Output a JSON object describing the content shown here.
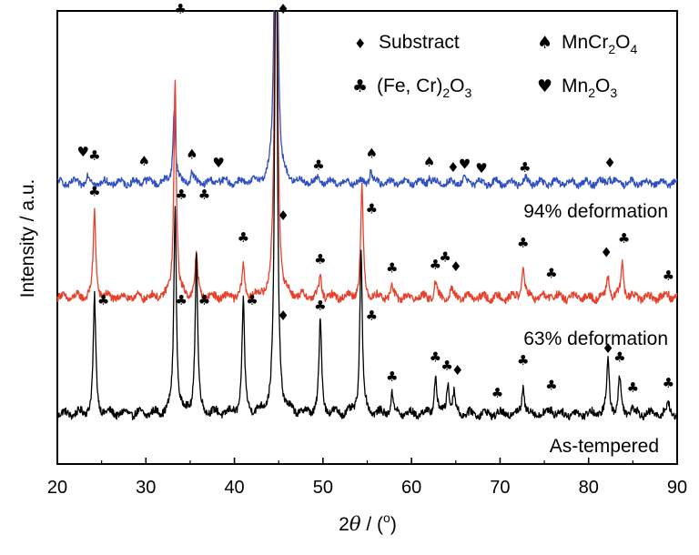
{
  "chart_data": {
    "type": "line",
    "xlabel_parts": [
      "2",
      "θ",
      " / (",
      "o",
      ")"
    ],
    "ylabel": "Intensity / a.u.",
    "xlim": [
      20,
      90
    ],
    "x_ticks": [
      20,
      30,
      40,
      50,
      60,
      70,
      80,
      90
    ],
    "y_ticks": "none (arbitrary units)",
    "grid": "off",
    "legend": {
      "placement": "top-right",
      "entries": [
        {
          "marker": "diamond",
          "symbol": "♦",
          "parts": [
            [
              "Substract",
              ""
            ]
          ]
        },
        {
          "marker": "spade",
          "symbol": "♠",
          "parts": [
            [
              "MnCr",
              ""
            ],
            [
              "2",
              "sub"
            ],
            [
              "O",
              ""
            ],
            [
              "4",
              "sub"
            ]
          ]
        },
        {
          "marker": "club",
          "symbol": "♣",
          "parts": [
            [
              "(Fe, Cr)",
              ""
            ],
            [
              "2",
              "sub"
            ],
            [
              "O",
              ""
            ],
            [
              "3",
              "sub"
            ]
          ]
        },
        {
          "marker": "heart",
          "symbol": "♥",
          "parts": [
            [
              "Mn",
              ""
            ],
            [
              "2",
              "sub"
            ],
            [
              "O",
              ""
            ],
            [
              "3",
              "sub"
            ]
          ]
        }
      ]
    },
    "series": [
      {
        "name": "As-tempered",
        "color": "#000000",
        "noise": 0.35,
        "peaks": [
          {
            "x": 24.2,
            "h": 10.6
          },
          {
            "x": 33.3,
            "h": 19.0
          },
          {
            "x": 35.7,
            "h": 14.6
          },
          {
            "x": 41.0,
            "h": 10.2
          },
          {
            "x": 44.7,
            "h": 50
          },
          {
            "x": 49.7,
            "h": 8.7
          },
          {
            "x": 54.3,
            "h": 14.8
          },
          {
            "x": 57.8,
            "h": 1.8
          },
          {
            "x": 62.7,
            "h": 3.4
          },
          {
            "x": 64.1,
            "h": 2.9
          },
          {
            "x": 64.8,
            "h": 1.8
          },
          {
            "x": 72.6,
            "h": 2.6
          },
          {
            "x": 75.8,
            "h": 0.6
          },
          {
            "x": 82.2,
            "h": 4.9
          },
          {
            "x": 83.5,
            "h": 3.3
          },
          {
            "x": 84.9,
            "h": 0.7
          },
          {
            "x": 89.0,
            "h": 1.0
          }
        ],
        "markers": [
          {
            "x": 25.2,
            "lift": 10.0,
            "symbol": "♣"
          },
          {
            "x": 34.0,
            "lift": 10.0,
            "symbol": "♣"
          },
          {
            "x": 36.6,
            "lift": 10.0,
            "symbol": "♣"
          },
          {
            "x": 42.0,
            "lift": 10.0,
            "symbol": "♣"
          },
          {
            "x": 45.5,
            "lift": 8.6,
            "symbol": "♦"
          },
          {
            "x": 49.7,
            "lift": 9.5,
            "symbol": "♣"
          },
          {
            "x": 55.5,
            "lift": 8.6,
            "symbol": "♣"
          },
          {
            "x": 57.8,
            "lift": 3.0,
            "symbol": "♣"
          },
          {
            "x": 62.7,
            "lift": 4.8,
            "symbol": "♣"
          },
          {
            "x": 64.0,
            "lift": 4.0,
            "symbol": "♣"
          },
          {
            "x": 65.2,
            "lift": 3.6,
            "symbol": "♦"
          },
          {
            "x": 69.7,
            "lift": 1.5,
            "symbol": "♣"
          },
          {
            "x": 72.6,
            "lift": 4.5,
            "symbol": "♣"
          },
          {
            "x": 75.8,
            "lift": 2.2,
            "symbol": "♣"
          },
          {
            "x": 82.2,
            "lift": 5.6,
            "symbol": "♦"
          },
          {
            "x": 83.5,
            "lift": 4.8,
            "symbol": "♣"
          },
          {
            "x": 85.0,
            "lift": 2.0,
            "symbol": "♣"
          },
          {
            "x": 89.0,
            "lift": 2.4,
            "symbol": "♣"
          }
        ]
      },
      {
        "name": "63% deformation",
        "color": "#e8402a",
        "noise": 0.35,
        "peaks": [
          {
            "x": 24.2,
            "h": 7.8
          },
          {
            "x": 33.3,
            "h": 20.0
          },
          {
            "x": 35.7,
            "h": 3.9
          },
          {
            "x": 41.0,
            "h": 2.7
          },
          {
            "x": 44.7,
            "h": 50
          },
          {
            "x": 49.7,
            "h": 1.8
          },
          {
            "x": 54.4,
            "h": 10.0
          },
          {
            "x": 57.8,
            "h": 0.9
          },
          {
            "x": 62.7,
            "h": 1.2
          },
          {
            "x": 64.5,
            "h": 0.8
          },
          {
            "x": 72.6,
            "h": 3.0
          },
          {
            "x": 75.8,
            "h": 0.4
          },
          {
            "x": 82.2,
            "h": 1.9
          },
          {
            "x": 83.8,
            "h": 3.3
          },
          {
            "x": 89.0,
            "h": 0.5
          }
        ],
        "markers": [
          {
            "x": 24.2,
            "lift": 9.3,
            "symbol": "♣"
          },
          {
            "x": 34.0,
            "lift": 9.0,
            "symbol": "♣"
          },
          {
            "x": 36.6,
            "lift": 9.0,
            "symbol": "♣"
          },
          {
            "x": 41.0,
            "lift": 5.1,
            "symbol": "♣"
          },
          {
            "x": 45.5,
            "lift": 7.1,
            "symbol": "♦"
          },
          {
            "x": 49.7,
            "lift": 3.1,
            "symbol": "♣"
          },
          {
            "x": 55.5,
            "lift": 7.7,
            "symbol": "♣"
          },
          {
            "x": 57.8,
            "lift": 2.3,
            "symbol": "♣"
          },
          {
            "x": 62.7,
            "lift": 2.6,
            "symbol": "♣"
          },
          {
            "x": 63.8,
            "lift": 3.3,
            "symbol": "♣"
          },
          {
            "x": 65.0,
            "lift": 2.4,
            "symbol": "♦"
          },
          {
            "x": 72.6,
            "lift": 4.6,
            "symbol": "♣"
          },
          {
            "x": 75.8,
            "lift": 1.8,
            "symbol": "♣"
          },
          {
            "x": 82.0,
            "lift": 3.7,
            "symbol": "♦"
          },
          {
            "x": 84.0,
            "lift": 5.0,
            "symbol": "♣"
          },
          {
            "x": 89.0,
            "lift": 1.6,
            "symbol": "♣"
          }
        ]
      },
      {
        "name": "94% deformation",
        "color": "#2e4fc4",
        "noise": 0.3,
        "peaks": [
          {
            "x": 23.4,
            "h": 0.6
          },
          {
            "x": 29.8,
            "h": 0.5
          },
          {
            "x": 33.2,
            "h": 6.8
          },
          {
            "x": 35.2,
            "h": 0.9
          },
          {
            "x": 38.2,
            "h": 0.4
          },
          {
            "x": 44.7,
            "h": 50
          },
          {
            "x": 49.5,
            "h": 0.4
          },
          {
            "x": 55.4,
            "h": 1.2
          },
          {
            "x": 62.0,
            "h": 0.6
          },
          {
            "x": 66.0,
            "h": 0.5
          },
          {
            "x": 72.9,
            "h": 0.4
          },
          {
            "x": 82.3,
            "h": 0.7
          }
        ],
        "markers": [
          {
            "x": 22.9,
            "lift": 2.4,
            "symbol": "♥"
          },
          {
            "x": 24.2,
            "lift": 2.1,
            "symbol": "♣"
          },
          {
            "x": 29.8,
            "lift": 1.6,
            "symbol": "♠"
          },
          {
            "x": 33.9,
            "lift": 15.5,
            "symbol": "♣"
          },
          {
            "x": 35.2,
            "lift": 2.2,
            "symbol": "♠"
          },
          {
            "x": 38.2,
            "lift": 1.4,
            "symbol": "♥"
          },
          {
            "x": 45.5,
            "lift": 15.5,
            "symbol": "♦"
          },
          {
            "x": 49.5,
            "lift": 1.2,
            "symbol": "♣"
          },
          {
            "x": 55.5,
            "lift": 2.3,
            "symbol": "♠"
          },
          {
            "x": 62.0,
            "lift": 1.5,
            "symbol": "♠"
          },
          {
            "x": 64.7,
            "lift": 1.0,
            "symbol": "♦"
          },
          {
            "x": 66.0,
            "lift": 1.3,
            "symbol": "♥"
          },
          {
            "x": 67.9,
            "lift": 0.9,
            "symbol": "♥"
          },
          {
            "x": 72.8,
            "lift": 1.0,
            "symbol": "♣"
          },
          {
            "x": 82.4,
            "lift": 1.4,
            "symbol": "♦"
          }
        ]
      }
    ]
  }
}
